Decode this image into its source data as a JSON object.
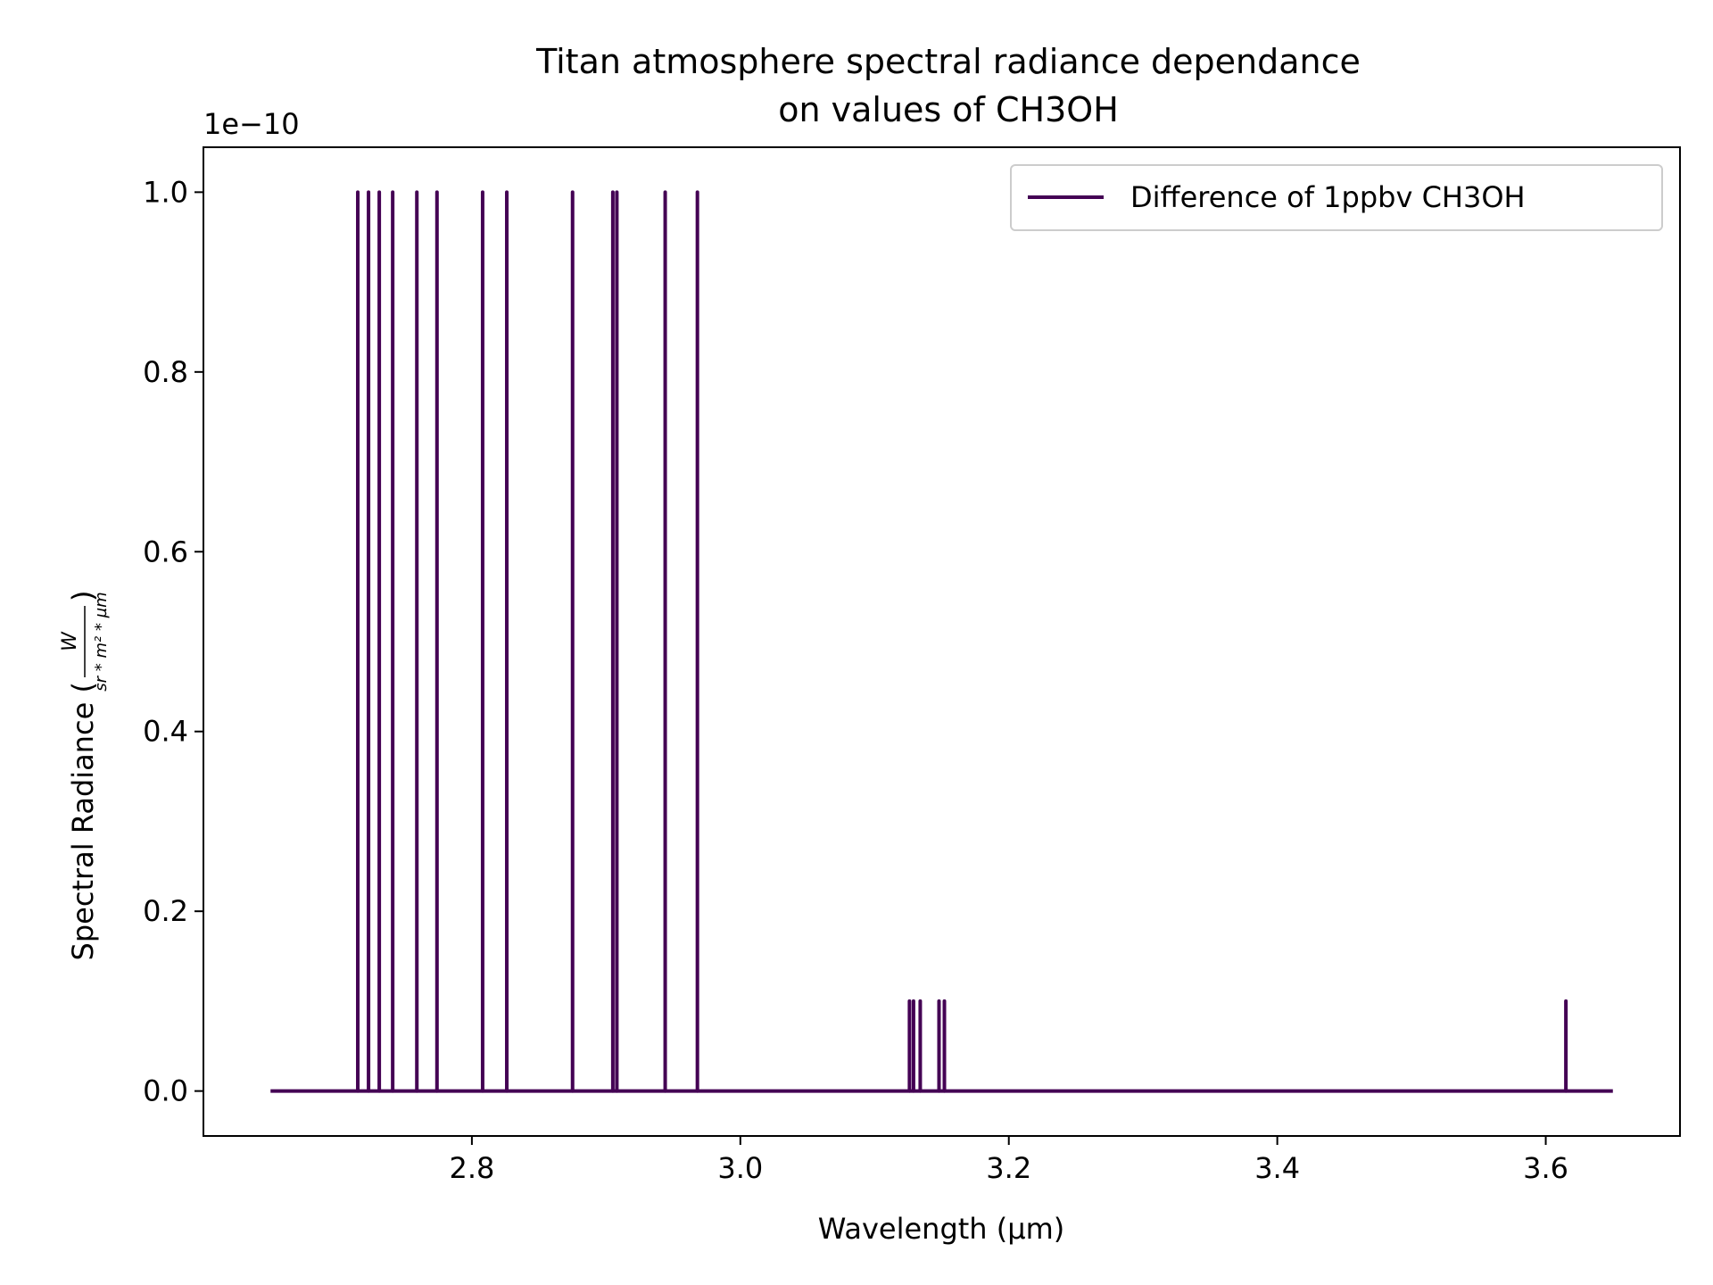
{
  "chart_data": {
    "type": "line",
    "title_lines": [
      "Titan atmosphere spectral radiance dependance",
      "on values of CH3OH"
    ],
    "xlabel": "Wavelength (µm)",
    "ylabel": "Spectral Radiance (",
    "ylabel_unit_numerator": "W",
    "ylabel_unit_denominator": "sr * m² * µm",
    "ylabel_suffix": ")",
    "y_offset_label": "1e−10",
    "xlim": [
      2.6,
      3.7
    ],
    "ylim": [
      -0.05,
      1.05
    ],
    "y_scale_factor": 1e-10,
    "x_ticks": [
      2.8,
      3.0,
      3.2,
      3.4,
      3.6
    ],
    "x_tick_labels": [
      "2.8",
      "3.0",
      "3.2",
      "3.4",
      "3.6"
    ],
    "y_ticks": [
      0.0,
      0.2,
      0.4,
      0.6,
      0.8,
      1.0
    ],
    "y_tick_labels": [
      "0.0",
      "0.2",
      "0.4",
      "0.6",
      "0.8",
      "1.0"
    ],
    "grid": false,
    "legend_position": "top-right",
    "series": [
      {
        "name": "Difference of 1ppbv CH3OH",
        "color": "#440154",
        "baseline": 0.0,
        "x_range": [
          2.65,
          3.65
        ],
        "spikes": [
          {
            "x": 2.715,
            "y": 1.0
          },
          {
            "x": 2.723,
            "y": 1.0
          },
          {
            "x": 2.731,
            "y": 1.0
          },
          {
            "x": 2.741,
            "y": 1.0
          },
          {
            "x": 2.759,
            "y": 1.0
          },
          {
            "x": 2.774,
            "y": 1.0
          },
          {
            "x": 2.808,
            "y": 1.0
          },
          {
            "x": 2.826,
            "y": 1.0
          },
          {
            "x": 2.875,
            "y": 1.0
          },
          {
            "x": 2.905,
            "y": 1.0
          },
          {
            "x": 2.908,
            "y": 1.0
          },
          {
            "x": 2.944,
            "y": 1.0
          },
          {
            "x": 2.968,
            "y": 1.0
          },
          {
            "x": 3.126,
            "y": 0.1
          },
          {
            "x": 3.129,
            "y": 0.1
          },
          {
            "x": 3.134,
            "y": 0.1
          },
          {
            "x": 3.148,
            "y": 0.1
          },
          {
            "x": 3.152,
            "y": 0.1
          },
          {
            "x": 3.615,
            "y": 0.1
          }
        ]
      }
    ]
  }
}
